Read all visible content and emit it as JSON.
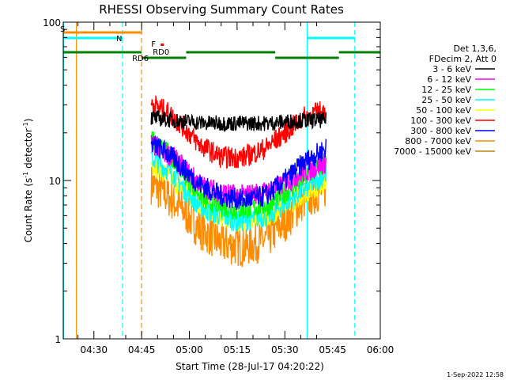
{
  "chart_data": {
    "type": "line",
    "title": "RHESSI Observing Summary Count Rates",
    "xlabel": "Start Time (28-Jul-17 04:20:22)",
    "ylabel": "Count Rate (s⁻¹ detector⁻¹)",
    "ylabel_parts": {
      "main": "Count Rate (s",
      "exp1": "-1",
      "mid": " detector",
      "exp2": "-1",
      "end": ")"
    },
    "yscale": "log",
    "ylim": [
      1,
      100
    ],
    "xlim": [
      "04:20:22",
      "06:00:00"
    ],
    "x_ticks": [
      "04:30",
      "04:45",
      "05:00",
      "05:15",
      "05:30",
      "05:45",
      "06:00"
    ],
    "y_ticks": [
      "1",
      "10",
      "100"
    ],
    "legend_header": [
      "Det 1,3,6,",
      "FDecim 2, Att 0"
    ],
    "series": [
      {
        "name": "3 - 6 keV",
        "color": "#000000",
        "values": [
          {
            "t": "04:48",
            "y": 25
          },
          {
            "t": "04:55",
            "y": 24
          },
          {
            "t": "05:05",
            "y": 23
          },
          {
            "t": "05:15",
            "y": 23
          },
          {
            "t": "05:25",
            "y": 23
          },
          {
            "t": "05:35",
            "y": 24
          },
          {
            "t": "05:43",
            "y": 24
          }
        ]
      },
      {
        "name": "6 - 12 keV",
        "color": "#ff00ff",
        "values": [
          {
            "t": "04:48",
            "y": 17
          },
          {
            "t": "04:55",
            "y": 14
          },
          {
            "t": "05:00",
            "y": 11
          },
          {
            "t": "05:05",
            "y": 9
          },
          {
            "t": "05:15",
            "y": 8
          },
          {
            "t": "05:25",
            "y": 8.5
          },
          {
            "t": "05:35",
            "y": 11
          },
          {
            "t": "05:43",
            "y": 13
          }
        ]
      },
      {
        "name": "12 - 25 keV",
        "color": "#00ff00",
        "values": [
          {
            "t": "04:48",
            "y": 18
          },
          {
            "t": "04:55",
            "y": 14
          },
          {
            "t": "05:00",
            "y": 10
          },
          {
            "t": "05:05",
            "y": 7.5
          },
          {
            "t": "05:15",
            "y": 6.5
          },
          {
            "t": "05:25",
            "y": 7
          },
          {
            "t": "05:35",
            "y": 10
          },
          {
            "t": "05:43",
            "y": 13
          }
        ]
      },
      {
        "name": "25 - 50 keV",
        "color": "#00ffff",
        "values": [
          {
            "t": "04:48",
            "y": 14
          },
          {
            "t": "04:55",
            "y": 11
          },
          {
            "t": "05:00",
            "y": 8
          },
          {
            "t": "05:05",
            "y": 6.5
          },
          {
            "t": "05:15",
            "y": 5.5
          },
          {
            "t": "05:25",
            "y": 6
          },
          {
            "t": "05:35",
            "y": 8.5
          },
          {
            "t": "05:43",
            "y": 11
          }
        ]
      },
      {
        "name": "50 - 100 keV",
        "color": "#ffff00",
        "values": [
          {
            "t": "04:48",
            "y": 13
          },
          {
            "t": "04:55",
            "y": 10
          },
          {
            "t": "05:05",
            "y": 6.5
          },
          {
            "t": "05:15",
            "y": 5.5
          },
          {
            "t": "05:25",
            "y": 6
          },
          {
            "t": "05:35",
            "y": 8
          },
          {
            "t": "05:43",
            "y": 10
          }
        ]
      },
      {
        "name": "100 - 300 keV",
        "color": "#ff0000",
        "values": [
          {
            "t": "04:48",
            "y": 31
          },
          {
            "t": "04:53",
            "y": 27
          },
          {
            "t": "04:58",
            "y": 22
          },
          {
            "t": "05:03",
            "y": 17
          },
          {
            "t": "05:10",
            "y": 14
          },
          {
            "t": "05:17",
            "y": 14
          },
          {
            "t": "05:24",
            "y": 16
          },
          {
            "t": "05:30",
            "y": 20
          },
          {
            "t": "05:36",
            "y": 25
          },
          {
            "t": "05:43",
            "y": 28
          }
        ]
      },
      {
        "name": "300 - 800 keV",
        "color": "#0000ff",
        "values": [
          {
            "t": "04:48",
            "y": 17
          },
          {
            "t": "04:53",
            "y": 15
          },
          {
            "t": "04:58",
            "y": 12
          },
          {
            "t": "05:03",
            "y": 9.5
          },
          {
            "t": "05:10",
            "y": 8
          },
          {
            "t": "05:17",
            "y": 7.5
          },
          {
            "t": "05:24",
            "y": 8
          },
          {
            "t": "05:30",
            "y": 10
          },
          {
            "t": "05:36",
            "y": 13
          },
          {
            "t": "05:43",
            "y": 16
          }
        ]
      },
      {
        "name": "800 - 7000 keV",
        "color": "#ff8c00",
        "values": [
          {
            "t": "04:48",
            "y": 9.5
          },
          {
            "t": "04:53",
            "y": 8
          },
          {
            "t": "04:58",
            "y": 6.5
          },
          {
            "t": "05:03",
            "y": 5
          },
          {
            "t": "05:10",
            "y": 4
          },
          {
            "t": "05:17",
            "y": 3.8
          },
          {
            "t": "05:24",
            "y": 4.2
          },
          {
            "t": "05:30",
            "y": 5.5
          },
          {
            "t": "05:36",
            "y": 7.5
          },
          {
            "t": "05:43",
            "y": 9
          }
        ]
      },
      {
        "name": "7000 - 15000 keV",
        "color": "#b8860b",
        "values": []
      }
    ],
    "annotations": [
      {
        "text": "S",
        "color": "#ff8c00"
      },
      {
        "text": "N",
        "color": "#00ffff"
      },
      {
        "text": "F",
        "color": "#ff0000"
      },
      {
        "text": "RD0",
        "color": "#008000"
      },
      {
        "text": "RD6",
        "color": "#008000"
      }
    ],
    "status_bars": {
      "saa": {
        "color": "#ff8c00",
        "spans": [
          [
            "04:20:22",
            "04:45:00"
          ]
        ]
      },
      "night": {
        "color": "#00ffff",
        "spans": [
          [
            "04:20:22",
            "04:39:00"
          ],
          [
            "05:37:00",
            "05:52:00"
          ]
        ]
      },
      "decimation": {
        "color": "#008000",
        "spans": [
          [
            "04:20:22",
            "04:45:00"
          ],
          [
            "04:45:00",
            "04:59:00"
          ],
          [
            "04:59:00",
            "05:27:00"
          ],
          [
            "05:27:00",
            "05:47:00"
          ],
          [
            "05:47:00",
            "06:00:00"
          ]
        ]
      },
      "flare_marker": {
        "color": "#ff0000",
        "t": "04:48:00"
      }
    },
    "vertical_lines": [
      {
        "t": "04:20:30",
        "color": "#00ffff",
        "style": "solid"
      },
      {
        "t": "04:24:30",
        "color": "#ff8c00",
        "style": "solid"
      },
      {
        "t": "04:39:00",
        "color": "#00ffff",
        "style": "dashed"
      },
      {
        "t": "04:45:00",
        "color": "#ff8c00",
        "style": "dashed"
      },
      {
        "t": "05:37:00",
        "color": "#00ffff",
        "style": "solid"
      },
      {
        "t": "05:52:00",
        "color": "#00ffff",
        "style": "dashed"
      }
    ]
  },
  "footer": {
    "timestamp": "1-Sep-2022 12:58"
  }
}
